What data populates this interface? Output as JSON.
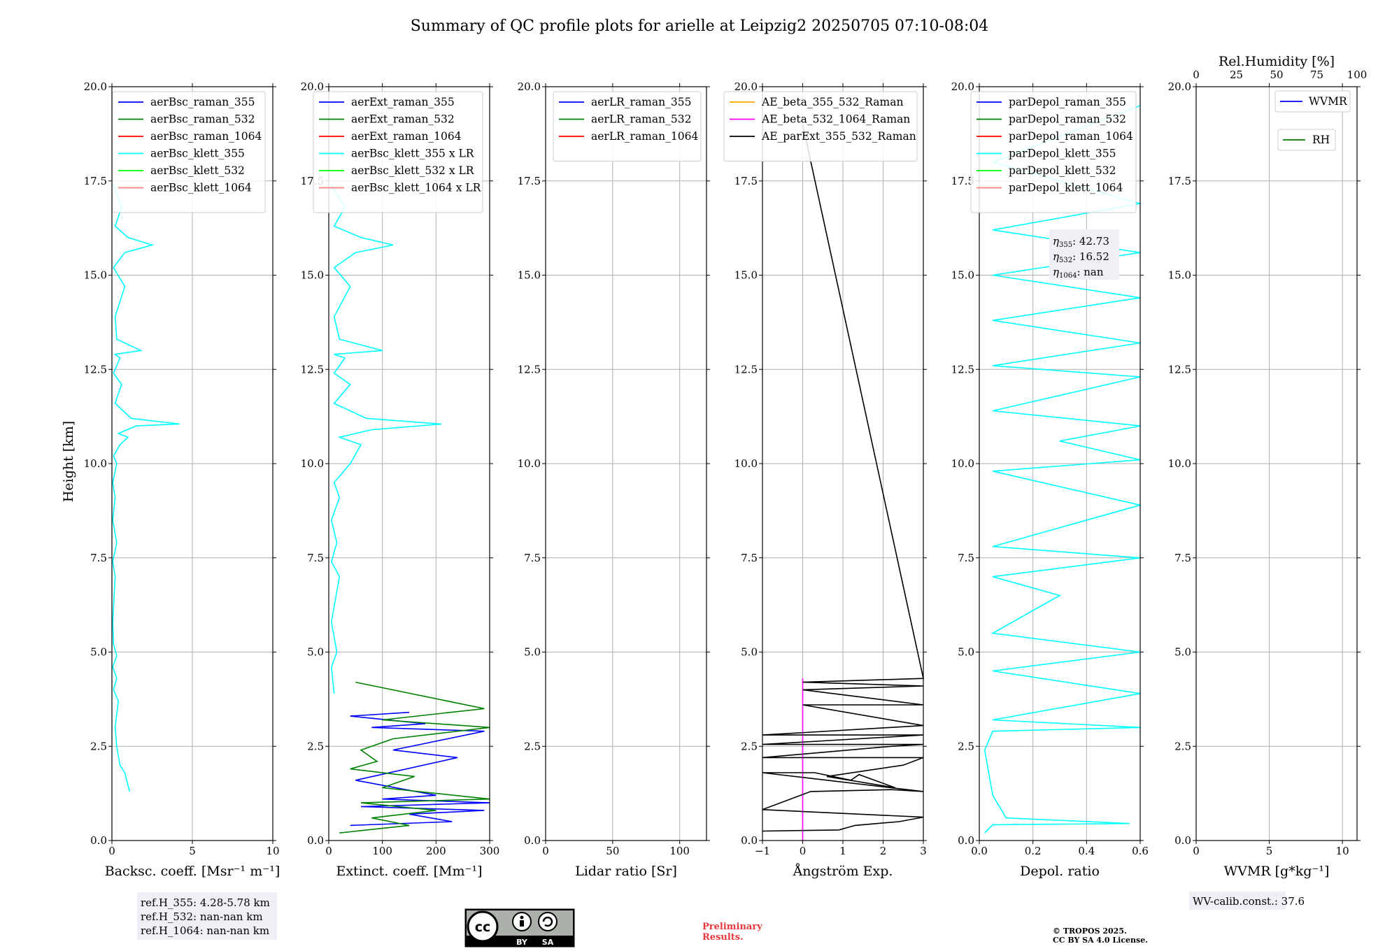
{
  "chart_data": {
    "title": "Summary of QC profile plots for arielle at Leipzig2 20250705 07:10-08:04",
    "ylabel": "Height [km]",
    "ylim": [
      0,
      20
    ],
    "yticks": [
      "0.0",
      "2.5",
      "5.0",
      "7.5",
      "10.0",
      "12.5",
      "15.0",
      "17.5",
      "20.0"
    ],
    "panels": [
      {
        "type": "line",
        "xlabel": "Backsc. coeff. [Msr⁻¹ m⁻¹]",
        "xlim": [
          0,
          10
        ],
        "xticks": [
          0,
          5,
          10
        ],
        "grid": true,
        "legend_position": "top-right",
        "series": [
          {
            "name": "aerBsc_raman_355",
            "color": "#0000ff",
            "x": [],
            "y": []
          },
          {
            "name": "aerBsc_raman_532",
            "color": "#008000",
            "x": [],
            "y": []
          },
          {
            "name": "aerBsc_raman_1064",
            "color": "#ff0000",
            "x": [],
            "y": []
          },
          {
            "name": "aerBsc_klett_355",
            "color": "#00ffff",
            "x": [
              1.1,
              0.8,
              0.5,
              0.3,
              0.2,
              0.4,
              0.1,
              0.3,
              0.05,
              0.3,
              0.1,
              0.05,
              0.2,
              0.05,
              0.3,
              0.05,
              0.2,
              0.05,
              0.3,
              0.1,
              0.5,
              1.0,
              0.4,
              1.5,
              4.2,
              1.2,
              0.2,
              0.6,
              0.1,
              0.5,
              0.2,
              1.8,
              0.3,
              0.2,
              0.8,
              0.1,
              0.8,
              2.5,
              1.0,
              0.2,
              0.6,
              0.1
            ],
            "y": [
              1.3,
              1.8,
              2.0,
              2.5,
              3.0,
              3.7,
              4.0,
              4.3,
              4.6,
              4.9,
              5.2,
              5.8,
              7.0,
              7.4,
              7.9,
              8.5,
              9.1,
              9.5,
              10.0,
              10.2,
              10.5,
              10.7,
              10.8,
              11.0,
              11.05,
              11.2,
              11.6,
              12.1,
              12.4,
              12.8,
              12.9,
              13.0,
              13.3,
              13.9,
              14.7,
              15.2,
              15.6,
              15.8,
              16.0,
              16.3,
              16.8,
              17.4
            ]
          },
          {
            "name": "aerBsc_klett_532",
            "color": "#00ff00",
            "x": [],
            "y": []
          },
          {
            "name": "aerBsc_klett_1064",
            "color": "#ff8080",
            "x": [],
            "y": []
          }
        ],
        "annotations": [
          "ref.H_355: 4.28-5.78 km",
          "ref.H_532: nan-nan km",
          "ref.H_1064: nan-nan km"
        ]
      },
      {
        "type": "line",
        "xlabel": "Extinct. coeff. [Mm⁻¹]",
        "xlim": [
          0,
          300
        ],
        "xticks": [
          0,
          100,
          200,
          300
        ],
        "grid": true,
        "legend_position": "top-right",
        "series": [
          {
            "name": "aerExt_raman_355",
            "color": "#0000ff",
            "x": [
              40,
              230,
              150,
              290,
              60,
              300,
              100,
              200,
              50,
              240,
              120,
              290,
              80,
              180,
              40,
              150
            ],
            "y": [
              0.4,
              0.5,
              0.7,
              0.8,
              0.9,
              1.0,
              1.1,
              1.2,
              1.6,
              2.2,
              2.4,
              2.9,
              3.0,
              3.1,
              3.3,
              3.4
            ]
          },
          {
            "name": "aerExt_raman_532",
            "color": "#008000",
            "x": [
              20,
              150,
              80,
              200,
              60,
              300,
              100,
              160,
              40,
              90,
              60,
              120,
              300,
              100,
              290,
              50
            ],
            "y": [
              0.2,
              0.4,
              0.6,
              0.8,
              1.0,
              1.1,
              1.4,
              1.7,
              1.9,
              2.1,
              2.4,
              2.7,
              3.0,
              3.2,
              3.5,
              4.2
            ]
          },
          {
            "name": "aerExt_raman_1064",
            "color": "#ff0000",
            "x": [],
            "y": []
          },
          {
            "name": "aerBsc_klett_355 x LR",
            "color": "#00ffff",
            "x": [
              10,
              5,
              15,
              5,
              20,
              5,
              15,
              5,
              20,
              10,
              40,
              60,
              20,
              80,
              210,
              70,
              10,
              40,
              10,
              30,
              10,
              100,
              20,
              10,
              40,
              10,
              50,
              120,
              60,
              10,
              30,
              5
            ],
            "y": [
              3.9,
              4.6,
              5.0,
              5.8,
              7.0,
              7.4,
              7.9,
              8.5,
              9.1,
              9.5,
              10.0,
              10.5,
              10.7,
              10.9,
              11.05,
              11.2,
              11.6,
              12.1,
              12.4,
              12.8,
              12.9,
              13.0,
              13.3,
              13.9,
              14.7,
              15.2,
              15.6,
              15.8,
              16.0,
              16.3,
              16.8,
              17.4
            ]
          },
          {
            "name": "aerBsc_klett_532 x LR",
            "color": "#00ff00",
            "x": [],
            "y": []
          },
          {
            "name": "aerBsc_klett_1064 x LR",
            "color": "#ff8080",
            "x": [],
            "y": []
          }
        ]
      },
      {
        "type": "line",
        "xlabel": "Lidar ratio [Sr]",
        "xlim": [
          0,
          120
        ],
        "xticks": [
          0,
          50,
          100
        ],
        "grid": true,
        "legend_position": "top-left",
        "series": [
          {
            "name": "aerLR_raman_355",
            "color": "#0000ff",
            "x": [],
            "y": []
          },
          {
            "name": "aerLR_raman_532",
            "color": "#008000",
            "x": [],
            "y": []
          },
          {
            "name": "aerLR_raman_1064",
            "color": "#ff0000",
            "x": [],
            "y": []
          }
        ]
      },
      {
        "type": "line",
        "xlabel": "Ångström Exp.",
        "xlim": [
          -1,
          3
        ],
        "xticks": [
          -1,
          0,
          1,
          2,
          3
        ],
        "grid": true,
        "legend_position": "top-left",
        "series": [
          {
            "name": "AE_beta_355_532_Raman",
            "color": "#ffa500",
            "x": [],
            "y": []
          },
          {
            "name": "AE_beta_532_1064_Raman",
            "color": "#ff00ff",
            "x": [
              0,
              0
            ],
            "y": [
              0,
              4.3
            ]
          },
          {
            "name": "AE_parExt_355_532_Raman",
            "color": "#000000",
            "x": [
              -1,
              0.9,
              1.3,
              2.4,
              3,
              -1,
              0.2,
              2.2,
              3,
              -1,
              0.3,
              1.2,
              1.4,
              2.3,
              0.6,
              2.5,
              3,
              -1,
              2.2,
              3,
              -1,
              3,
              -1,
              3,
              0,
              3,
              0,
              3,
              0,
              3,
              0
            ],
            "y": [
              0.25,
              0.28,
              0.4,
              0.5,
              0.62,
              0.82,
              1.3,
              1.35,
              1.3,
              1.8,
              1.8,
              1.6,
              1.75,
              1.4,
              1.7,
              2.0,
              2.2,
              2.2,
              2.5,
              2.55,
              2.55,
              2.8,
              2.8,
              3.05,
              3.6,
              3.6,
              4.0,
              4.1,
              4.2,
              4.3,
              19.0
            ]
          }
        ]
      },
      {
        "type": "line",
        "xlabel": "Depol. ratio",
        "xlim": [
          0,
          0.6
        ],
        "xticks": [
          "0.0",
          "0.2",
          "0.4",
          "0.6"
        ],
        "grid": true,
        "legend_position": "top-right",
        "series": [
          {
            "name": "parDepol_raman_355",
            "color": "#0000ff",
            "x": [],
            "y": []
          },
          {
            "name": "parDepol_raman_532",
            "color": "#008000",
            "x": [],
            "y": []
          },
          {
            "name": "parDepol_raman_1064",
            "color": "#ff0000",
            "x": [],
            "y": []
          },
          {
            "name": "parDepol_klett_355",
            "color": "#00ffff",
            "x": [
              0.02,
              0.05,
              0.56,
              0.1,
              0.05,
              0.03,
              0.02,
              0.05,
              0.6,
              0.05,
              0.6,
              0.05,
              0.6,
              0.05,
              0.3,
              0.05,
              0.6,
              0.05,
              0.6,
              0.05,
              0.6,
              0.3,
              0.6,
              0.05,
              0.6,
              0.05,
              0.6,
              0.05,
              0.6,
              0.05,
              0.6,
              0.05,
              0.6,
              0.05,
              0.6
            ],
            "y": [
              0.2,
              0.42,
              0.45,
              0.6,
              1.2,
              2.0,
              2.4,
              2.9,
              3.0,
              3.2,
              3.9,
              4.5,
              5.0,
              5.5,
              6.5,
              7.0,
              7.5,
              7.8,
              8.9,
              9.8,
              10.1,
              10.6,
              11.0,
              11.4,
              12.3,
              12.6,
              13.2,
              13.8,
              14.4,
              15.0,
              15.6,
              16.2,
              16.9,
              18.0,
              19.5
            ]
          },
          {
            "name": "parDepol_klett_532",
            "color": "#00ff00",
            "x": [],
            "y": []
          },
          {
            "name": "parDepol_klett_1064",
            "color": "#ff8080",
            "x": [],
            "y": []
          }
        ],
        "annotations": {
          "eta355": "42.73",
          "eta532": "16.52",
          "eta1064": "nan"
        }
      },
      {
        "type": "line",
        "xlabel": "WVMR [g*kg⁻¹]",
        "xlim": [
          0,
          11
        ],
        "xticks": [
          0,
          5,
          10
        ],
        "x2label": "Rel.Humidity [%]",
        "x2lim": [
          0,
          100
        ],
        "x2ticks": [
          0,
          25,
          50,
          75,
          100
        ],
        "grid": true,
        "series": [
          {
            "name": "WVMR",
            "color": "#0000ff",
            "x": [],
            "y": []
          },
          {
            "name": "RH",
            "color": "#008000",
            "x": [],
            "y": []
          }
        ],
        "annotations": [
          "WV-calib.const.: 37.6"
        ]
      }
    ]
  },
  "footer": {
    "cc_license": {
      "cc": "cc",
      "by": "BY",
      "sa": "SA"
    },
    "preliminary": [
      "Preliminary",
      "Results."
    ],
    "copyright": [
      "© TROPOS 2025.",
      "CC BY SA 4.0 License."
    ]
  }
}
